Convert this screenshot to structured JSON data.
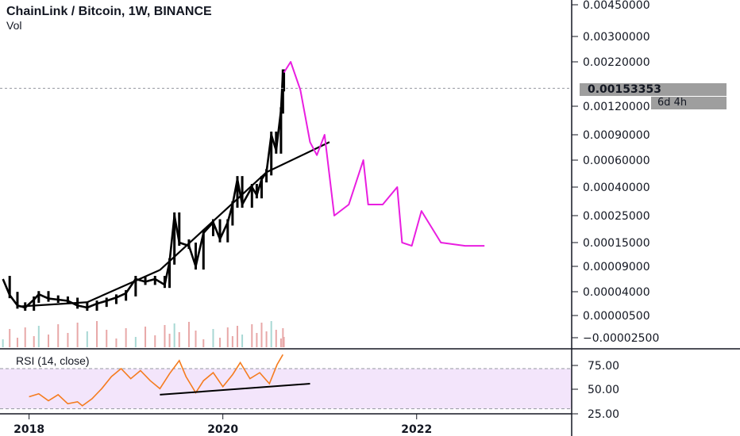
{
  "header": {
    "title": "ChainLink / Bitcoin, 1W, BINANCE",
    "volume_label": "Vol"
  },
  "rsi_panel": {
    "label": "RSI (14, close)"
  },
  "price_axis": {
    "ticks": [
      "0.00450000",
      "0.00300000",
      "0.00220000",
      "0.00120000",
      "0.00090000",
      "0.00060000",
      "0.00040000",
      "0.00025000",
      "0.00015000",
      "0.00009000",
      "0.00004000",
      "0.00000500",
      "−0.00002500"
    ],
    "current_price": "0.00153353",
    "countdown": "6d 4h"
  },
  "rsi_axis": {
    "ticks": [
      "75.00",
      "50.00",
      "25.00"
    ]
  },
  "time_axis": {
    "ticks": [
      "2018",
      "2020",
      "2022"
    ]
  },
  "colors": {
    "candle": "#000000",
    "trendline": "#000000",
    "projection": "#e91ee0",
    "rsi_line": "#f57c1f",
    "rsi_band": "#f3e5fb",
    "volume": "#e8a8a8",
    "volume_alt": "#a8d8d4",
    "badge": "#9e9e9e"
  },
  "chart_data": {
    "type": "line",
    "title": "ChainLink / Bitcoin, 1W, BINANCE",
    "xlabel": "",
    "ylabel": "",
    "x_ticks": [
      "2018",
      "2020",
      "2022"
    ],
    "xlim": [
      2017.7,
      2023.6
    ],
    "y_scale": "log",
    "series": [
      {
        "values": [
          {
            "x": 2017.73,
            "y": 6e-05
          },
          {
            "x": 2017.8,
            "y": 3e-05
          },
          {
            "x": 2017.88,
            "y": 1.2e-05
          },
          {
            "x": 2017.96,
            "y": 1e-05
          },
          {
            "x": 2018.05,
            "y": 2e-05
          },
          {
            "x": 2018.1,
            "y": 3.2e-05
          },
          {
            "x": 2018.2,
            "y": 2.2e-05
          },
          {
            "x": 2018.3,
            "y": 2e-05
          },
          {
            "x": 2018.4,
            "y": 1.8e-05
          },
          {
            "x": 2018.5,
            "y": 1.2e-05
          },
          {
            "x": 2018.6,
            "y": 1e-05
          },
          {
            "x": 2018.7,
            "y": 1.4e-05
          },
          {
            "x": 2018.8,
            "y": 1.8e-05
          },
          {
            "x": 2018.9,
            "y": 2.4e-05
          },
          {
            "x": 2019.0,
            "y": 3.5e-05
          },
          {
            "x": 2019.1,
            "y": 6e-05
          },
          {
            "x": 2019.2,
            "y": 5.5e-05
          },
          {
            "x": 2019.3,
            "y": 6e-05
          },
          {
            "x": 2019.4,
            "y": 5e-05
          },
          {
            "x": 2019.45,
            "y": 0.0001
          },
          {
            "x": 2019.5,
            "y": 0.00025
          },
          {
            "x": 2019.55,
            "y": 0.00015
          },
          {
            "x": 2019.65,
            "y": 0.00014
          },
          {
            "x": 2019.72,
            "y": 9e-05
          },
          {
            "x": 2019.8,
            "y": 0.00018
          },
          {
            "x": 2019.9,
            "y": 0.00022
          },
          {
            "x": 2019.97,
            "y": 0.00016
          },
          {
            "x": 2020.05,
            "y": 0.00022
          },
          {
            "x": 2020.1,
            "y": 0.0003
          },
          {
            "x": 2020.15,
            "y": 0.00045
          },
          {
            "x": 2020.2,
            "y": 0.0003
          },
          {
            "x": 2020.3,
            "y": 0.0004
          },
          {
            "x": 2020.35,
            "y": 0.00035
          },
          {
            "x": 2020.4,
            "y": 0.00045
          },
          {
            "x": 2020.45,
            "y": 0.0005
          },
          {
            "x": 2020.5,
            "y": 0.0009
          },
          {
            "x": 2020.55,
            "y": 0.0007
          },
          {
            "x": 2020.6,
            "y": 0.00115
          },
          {
            "x": 2020.62,
            "y": 0.0019
          },
          {
            "x": 2020.63,
            "y": 0.00153353
          }
        ]
      },
      {
        "values": [
          {
            "x": 2020.63,
            "y": 0.0019
          },
          {
            "x": 2020.7,
            "y": 0.0022
          },
          {
            "x": 2020.8,
            "y": 0.0015
          },
          {
            "x": 2020.9,
            "y": 0.0008
          },
          {
            "x": 2020.97,
            "y": 0.00065
          },
          {
            "x": 2021.05,
            "y": 0.0009
          },
          {
            "x": 2021.15,
            "y": 0.00025
          },
          {
            "x": 2021.3,
            "y": 0.0003
          },
          {
            "x": 2021.45,
            "y": 0.0006
          },
          {
            "x": 2021.5,
            "y": 0.0003
          },
          {
            "x": 2021.65,
            "y": 0.0003
          },
          {
            "x": 2021.8,
            "y": 0.0004
          },
          {
            "x": 2021.85,
            "y": 0.00015
          },
          {
            "x": 2021.95,
            "y": 0.00014
          },
          {
            "x": 2022.05,
            "y": 0.00027
          },
          {
            "x": 2022.25,
            "y": 0.00015
          },
          {
            "x": 2022.5,
            "y": 0.00014
          },
          {
            "x": 2022.7,
            "y": 0.00014
          }
        ]
      }
    ],
    "trendlines": [
      {
        "from": {
          "x": 2017.9,
          "y": 1.1e-05
        },
        "to": {
          "x": 2018.6,
          "y": 1.6e-05
        }
      },
      {
        "from": {
          "x": 2018.6,
          "y": 1.6e-05
        },
        "to": {
          "x": 2019.35,
          "y": 8e-05
        }
      },
      {
        "from": {
          "x": 2019.35,
          "y": 8e-05
        },
        "to": {
          "x": 2020.45,
          "y": 0.0005
        }
      },
      {
        "from": {
          "x": 2020.45,
          "y": 0.0005
        },
        "to": {
          "x": 2021.1,
          "y": 0.0008
        }
      }
    ],
    "rsi": {
      "values": [
        {
          "x": 2018.0,
          "y": 42
        },
        {
          "x": 2018.1,
          "y": 45
        },
        {
          "x": 2018.2,
          "y": 38
        },
        {
          "x": 2018.3,
          "y": 44
        },
        {
          "x": 2018.4,
          "y": 35
        },
        {
          "x": 2018.5,
          "y": 37
        },
        {
          "x": 2018.55,
          "y": 33
        },
        {
          "x": 2018.65,
          "y": 40
        },
        {
          "x": 2018.75,
          "y": 50
        },
        {
          "x": 2018.85,
          "y": 62
        },
        {
          "x": 2018.95,
          "y": 70
        },
        {
          "x": 2019.05,
          "y": 60
        },
        {
          "x": 2019.15,
          "y": 68
        },
        {
          "x": 2019.25,
          "y": 58
        },
        {
          "x": 2019.35,
          "y": 50
        },
        {
          "x": 2019.45,
          "y": 65
        },
        {
          "x": 2019.55,
          "y": 78
        },
        {
          "x": 2019.62,
          "y": 62
        },
        {
          "x": 2019.72,
          "y": 46
        },
        {
          "x": 2019.8,
          "y": 58
        },
        {
          "x": 2019.9,
          "y": 66
        },
        {
          "x": 2020.0,
          "y": 52
        },
        {
          "x": 2020.1,
          "y": 64
        },
        {
          "x": 2020.18,
          "y": 76
        },
        {
          "x": 2020.28,
          "y": 60
        },
        {
          "x": 2020.38,
          "y": 66
        },
        {
          "x": 2020.48,
          "y": 55
        },
        {
          "x": 2020.56,
          "y": 74
        },
        {
          "x": 2020.62,
          "y": 84
        }
      ],
      "trendline": {
        "from": {
          "x": 2019.35,
          "y": 44
        },
        "to": {
          "x": 2020.9,
          "y": 55
        }
      },
      "band": [
        30,
        70
      ],
      "ylim": [
        25,
        85
      ]
    },
    "grid": false,
    "legend": "none"
  }
}
